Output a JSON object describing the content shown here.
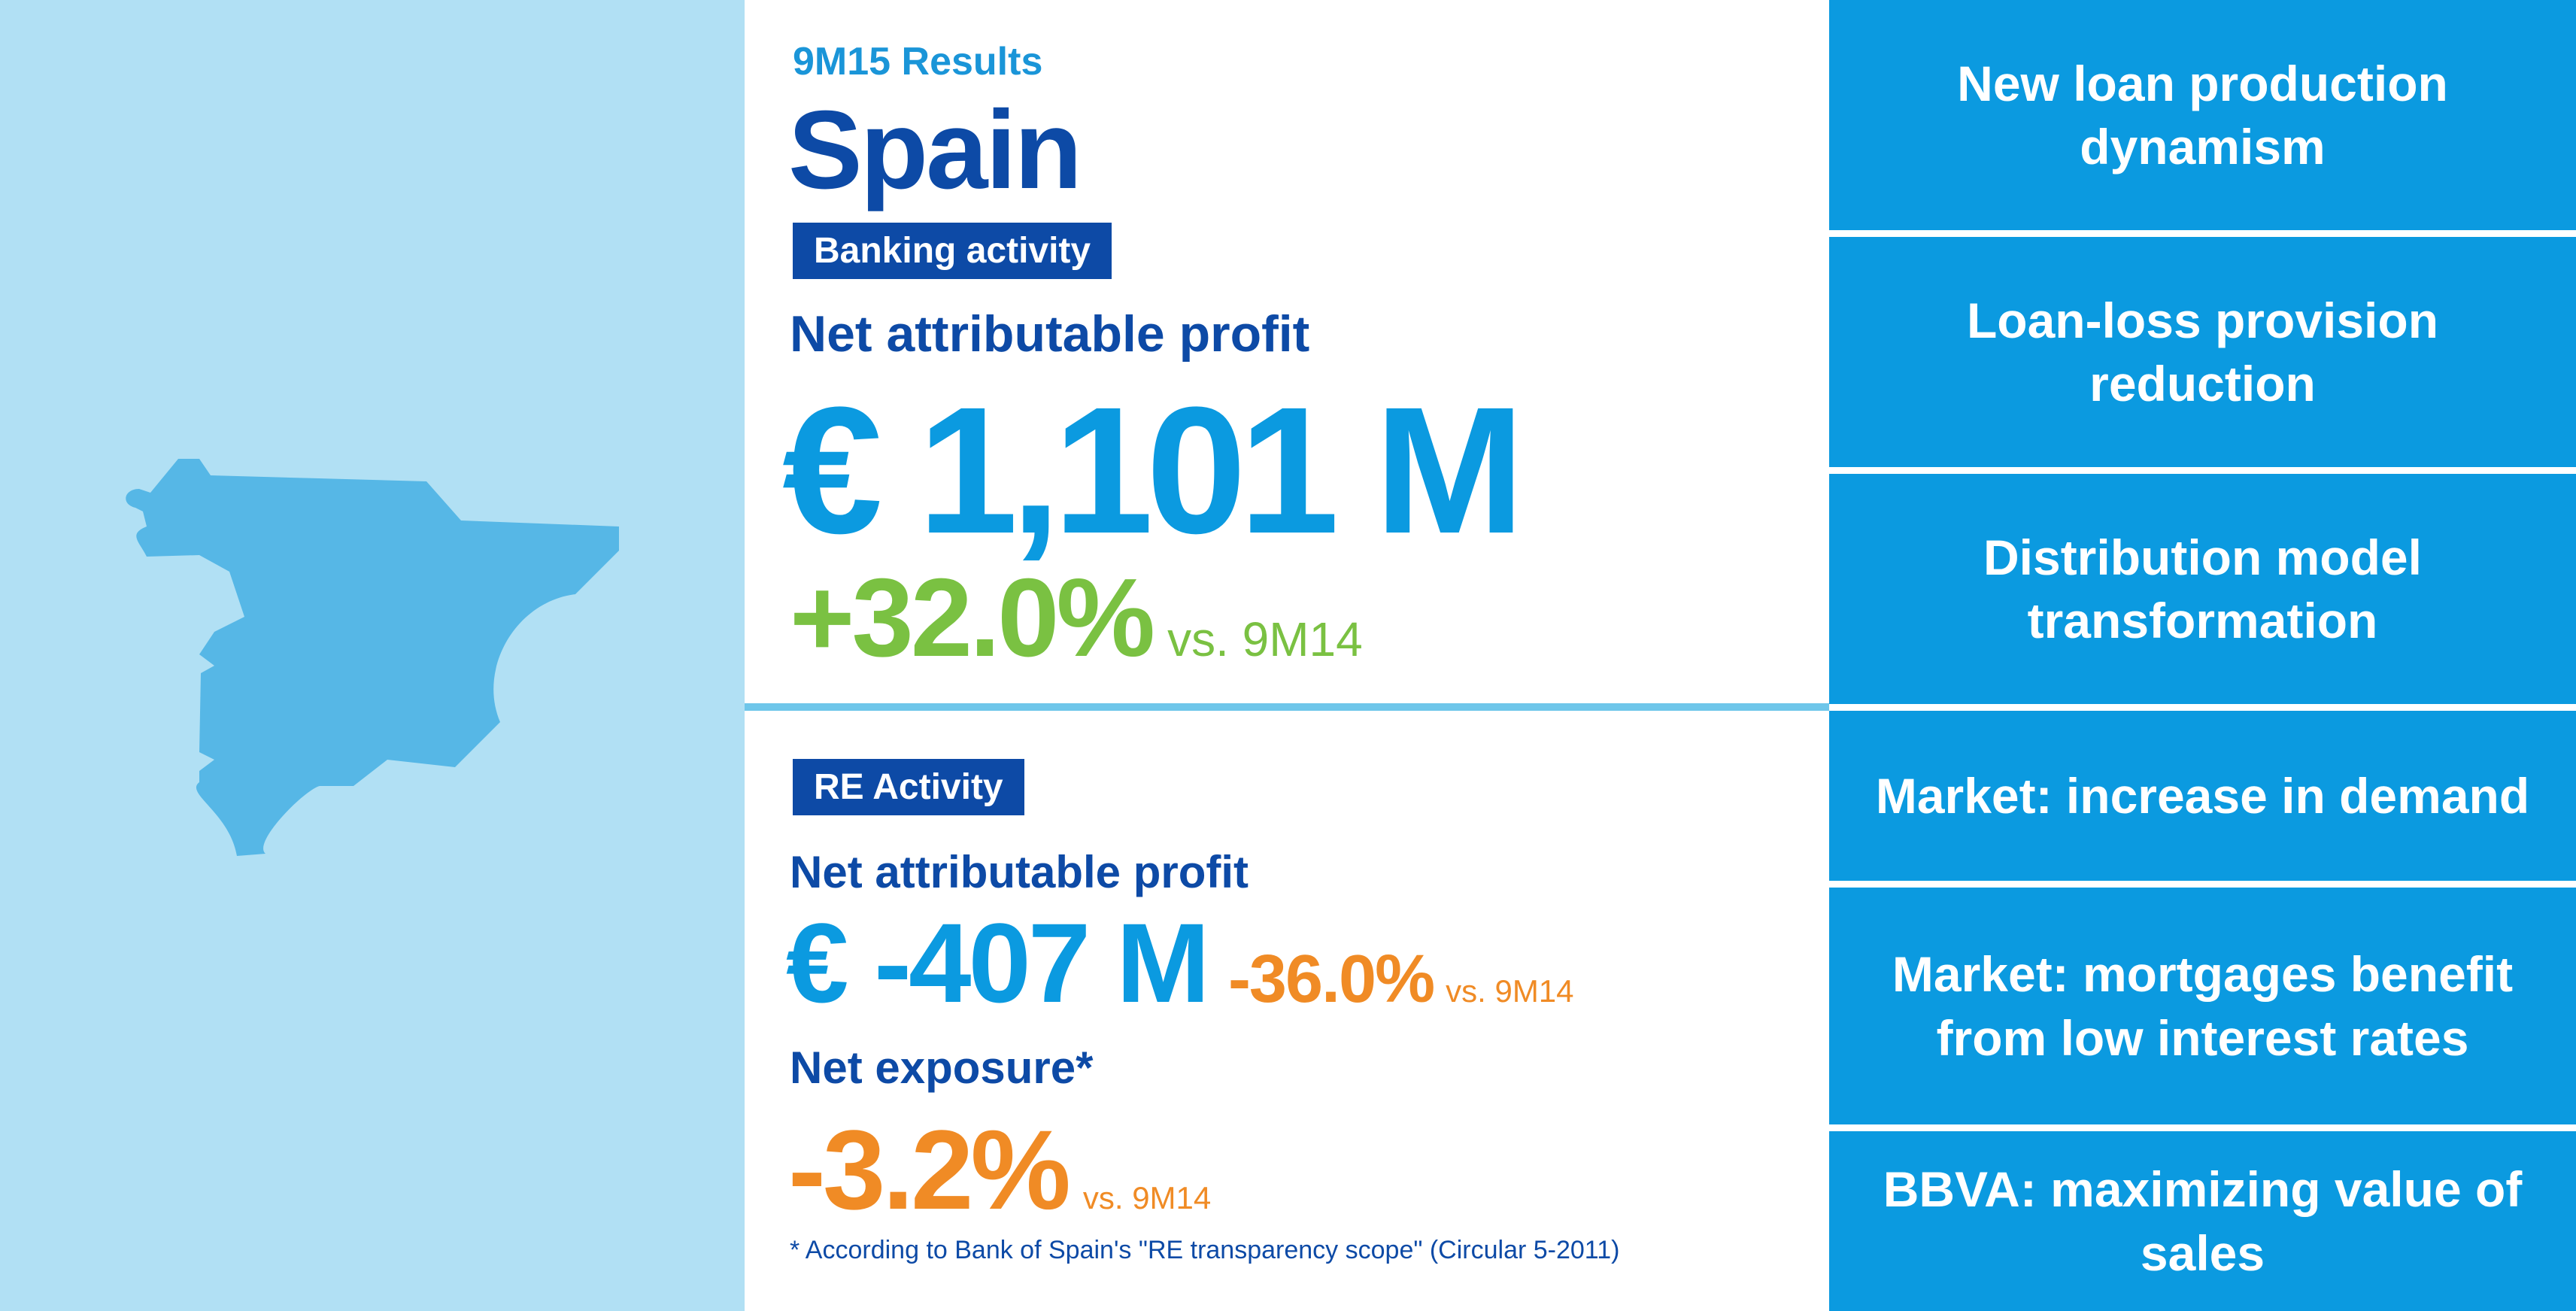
{
  "header": {
    "period": "9M15 Results",
    "country": "Spain"
  },
  "banking": {
    "tag": "Banking activity",
    "label": "Net attributable profit",
    "value": "€ 1,101 M",
    "change": "+32.0%",
    "comparison": "vs. 9M14"
  },
  "re_activity": {
    "tag": "RE Activity",
    "profit_label": "Net attributable profit",
    "profit_value": "€ -407 M",
    "profit_change": "-36.0%",
    "profit_comparison": "vs. 9M14",
    "exposure_label": "Net exposure*",
    "exposure_change": "-3.2%",
    "exposure_comparison": "vs. 9M14",
    "footnote": "* According to Bank of Spain's \"RE transparency scope\" (Circular 5-2011)"
  },
  "highlights": [
    "New loan production dynamism",
    "Loan-loss provision reduction",
    "Distribution model transformation",
    "Market: increase in demand",
    "Market: mortgages benefit from low interest rates",
    "BBVA: maximizing value of sales"
  ],
  "colors": {
    "map_background": "#b1e0f4",
    "map_shape": "#56b7e6",
    "dark_blue": "#0d4aa6",
    "bright_blue": "#0b9ae0",
    "green": "#7ac142",
    "orange": "#f08b25"
  }
}
